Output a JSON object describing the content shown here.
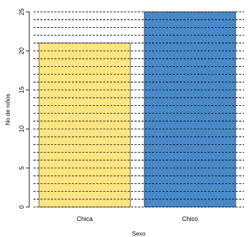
{
  "chart_data": {
    "type": "bar",
    "categories": [
      "Chica",
      "Chico"
    ],
    "values": [
      21,
      25
    ],
    "colors": [
      "#FCE582",
      "#4A89C8"
    ],
    "xlabel": "Sexo",
    "ylabel": "No de niños",
    "ylim": [
      0,
      25
    ],
    "yticks": [
      0,
      5,
      10,
      15,
      20,
      25
    ],
    "grid": true,
    "grid_step": 1
  }
}
